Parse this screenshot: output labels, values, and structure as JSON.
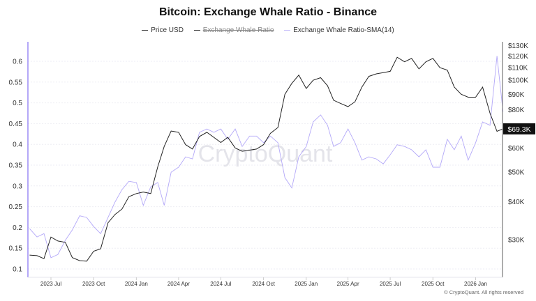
{
  "chart_data": {
    "type": "line",
    "title": "Bitcoin: Exchange Whale Ratio - Binance",
    "legend": [
      {
        "name": "Price USD",
        "color": "#333333",
        "visible": true
      },
      {
        "name": "Exchange Whale Ratio",
        "color": "#333333",
        "visible": false
      },
      {
        "name": "Exchange Whale Ratio-SMA(14)",
        "color": "#9b8cf5",
        "visible": true
      }
    ],
    "legend_position": "top",
    "x": [
      "2023-05-16",
      "2023-06-01",
      "2023-06-16",
      "2023-07-01",
      "2023-07-16",
      "2023-08-01",
      "2023-08-16",
      "2023-09-01",
      "2023-09-16",
      "2023-10-01",
      "2023-10-16",
      "2023-11-01",
      "2023-11-16",
      "2023-12-01",
      "2023-12-16",
      "2024-01-01",
      "2024-01-16",
      "2024-02-01",
      "2024-02-16",
      "2024-03-01",
      "2024-03-16",
      "2024-04-01",
      "2024-04-16",
      "2024-05-01",
      "2024-05-16",
      "2024-06-01",
      "2024-06-16",
      "2024-07-01",
      "2024-07-16",
      "2024-08-01",
      "2024-08-16",
      "2024-09-01",
      "2024-09-16",
      "2024-10-01",
      "2024-10-16",
      "2024-11-01",
      "2024-11-16",
      "2024-12-01",
      "2024-12-16",
      "2025-01-01",
      "2025-01-16",
      "2025-02-01",
      "2025-02-16",
      "2025-03-01",
      "2025-03-16",
      "2025-04-01",
      "2025-04-16",
      "2025-05-01",
      "2025-05-16",
      "2025-06-01",
      "2025-06-16",
      "2025-07-01",
      "2025-07-16",
      "2025-08-01",
      "2025-08-16",
      "2025-09-01",
      "2025-09-16",
      "2025-10-01",
      "2025-10-16",
      "2025-11-01",
      "2025-11-16",
      "2025-12-01",
      "2025-12-16",
      "2026-01-01",
      "2026-01-16",
      "2026-02-01",
      "2026-02-16",
      "2026-03-01"
    ],
    "series": [
      {
        "name": "Price USD",
        "axis": "right",
        "color": "#333333",
        "values": [
          26700,
          26600,
          26000,
          30600,
          29700,
          29400,
          26200,
          25600,
          25500,
          27500,
          28000,
          34100,
          36300,
          37800,
          41500,
          42500,
          43000,
          42500,
          52000,
          60700,
          68200,
          67500,
          61500,
          59500,
          65400,
          67500,
          65000,
          62500,
          65000,
          60000,
          58500,
          59000,
          59500,
          61500,
          67000,
          70000,
          90000,
          97700,
          104000,
          94000,
          100000,
          102000,
          96000,
          86000,
          84000,
          82000,
          85000,
          95000,
          103000,
          105000,
          106000,
          107000,
          119000,
          115000,
          118000,
          109000,
          115000,
          118000,
          110000,
          108000,
          95000,
          90000,
          88000,
          88000,
          95000,
          78000,
          68000,
          69300
        ]
      },
      {
        "name": "Exchange Whale Ratio-SMA(14)",
        "axis": "left",
        "color": "#9b8cf5",
        "values": [
          0.197,
          0.177,
          0.185,
          0.127,
          0.135,
          0.169,
          0.194,
          0.228,
          0.224,
          0.202,
          0.185,
          0.224,
          0.261,
          0.291,
          0.311,
          0.308,
          0.253,
          0.298,
          0.308,
          0.253,
          0.333,
          0.345,
          0.37,
          0.365,
          0.429,
          0.437,
          0.429,
          0.437,
          0.412,
          0.437,
          0.395,
          0.42,
          0.42,
          0.404,
          0.42,
          0.404,
          0.32,
          0.295,
          0.37,
          0.395,
          0.454,
          0.471,
          0.446,
          0.395,
          0.404,
          0.437,
          0.404,
          0.362,
          0.37,
          0.365,
          0.353,
          0.375,
          0.399,
          0.395,
          0.387,
          0.37,
          0.387,
          0.345,
          0.345,
          0.412,
          0.387,
          0.42,
          0.362,
          0.404,
          0.454,
          0.446,
          0.613,
          0.479
        ]
      }
    ],
    "x_ticks": [
      "2023 Jul",
      "2023 Oct",
      "2024 Jan",
      "2024 Apr",
      "2024 Jul",
      "2024 Oct",
      "2025 Jan",
      "2025 Apr",
      "2025 Jul",
      "2025 Oct",
      "2026 Jan"
    ],
    "y_left_ticks": [
      "0.1",
      "0.15",
      "0.2",
      "0.25",
      "0.3",
      "0.35",
      "0.4",
      "0.45",
      "0.5",
      "0.55",
      "0.6"
    ],
    "y_right_ticks": [
      "$30K",
      "$40K",
      "$50K",
      "$60K",
      "$80K",
      "$90K",
      "$100K",
      "$110K",
      "$120K",
      "$130K"
    ],
    "y_left_range": [
      0.08,
      0.65
    ],
    "y_right_range": [
      22700,
      134000
    ],
    "y_right_scale": "log",
    "last_price_label": "$69.3K",
    "grid": true,
    "watermark": "CryptoQuant",
    "copyright": "© CryptoQuant. All rights reserved"
  }
}
